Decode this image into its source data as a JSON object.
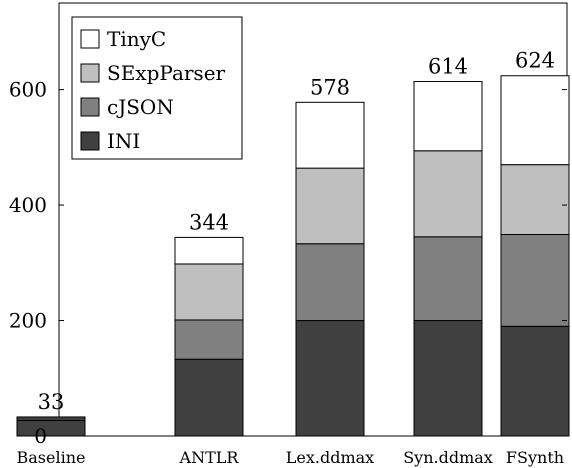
{
  "chart_data": {
    "type": "bar",
    "stacked": true,
    "categories": [
      "Baseline",
      "ANTLR",
      "Lex.ddmax",
      "Syn.ddmax",
      "FSynth"
    ],
    "series": [
      {
        "name": "INI",
        "color": "#404040",
        "values": [
          27,
          133,
          200,
          200,
          190
        ]
      },
      {
        "name": "cJSON",
        "color": "#808080",
        "values": [
          1,
          68,
          133,
          145,
          159
        ]
      },
      {
        "name": "SExpParser",
        "color": "#bfbfbf",
        "values": [
          3,
          97,
          131,
          149,
          121
        ]
      },
      {
        "name": "TinyC",
        "color": "#ffffff",
        "values": [
          2,
          46,
          114,
          120,
          154
        ]
      }
    ],
    "totals": [
      "33",
      "344",
      "578",
      "614",
      "624"
    ],
    "ylim": [
      0,
      750
    ],
    "yticks": [
      0,
      200,
      400,
      600
    ],
    "grid": false,
    "legend_position": "top-left",
    "legend_order": [
      "TinyC",
      "SExpParser",
      "cJSON",
      "INI"
    ],
    "xlabel": "",
    "ylabel": "",
    "title": ""
  }
}
